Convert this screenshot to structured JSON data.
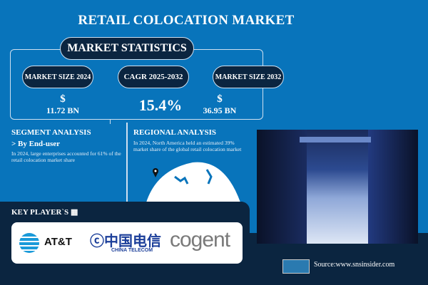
{
  "title": "RETAIL COLOCATION MARKET",
  "stats": {
    "heading": "MARKET STATISTICS",
    "items": [
      {
        "label": "MARKET SIZE 2024",
        "currency": "$",
        "value": "11.72 BN"
      },
      {
        "label": "CAGR 2025-2032",
        "value": "15.4%"
      },
      {
        "label": "MARKET SIZE 2032",
        "currency": "$",
        "value": "36.95 BN"
      }
    ]
  },
  "segment": {
    "heading": "SEGMENT ANALYSIS",
    "sub": "> By End-user",
    "text": "In 2024, large enterprises accounted for 61% of the retail colocation market share"
  },
  "regional": {
    "heading": "REGIONAL ANALYSIS",
    "text": "In 2024, North America held an estimated 39% market share of the global retail colocation market"
  },
  "players": {
    "heading": "KEY PLAYER`S",
    "logos": [
      "AT&T",
      "中国电信",
      "CHINA TELECOM",
      "cogent"
    ]
  },
  "source": "Source:www.snsinsider.com",
  "colors": {
    "background": "#0874bb",
    "dark": "#0b2540",
    "att_blue": "#1a9ad9",
    "cogent_grey": "#7a7a7a"
  }
}
